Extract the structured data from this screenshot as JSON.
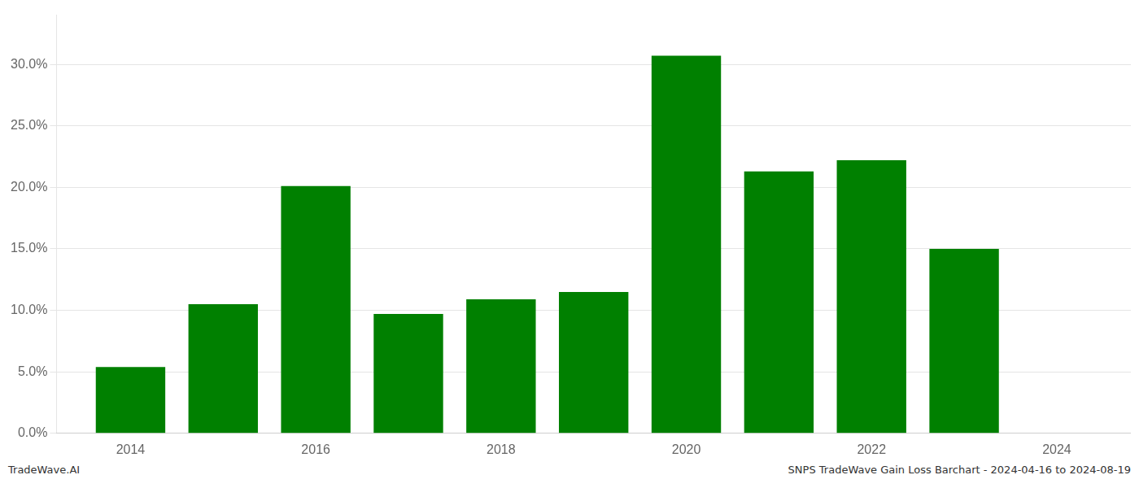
{
  "chart_data": {
    "type": "bar",
    "x": [
      2014,
      2015,
      2016,
      2017,
      2018,
      2019,
      2020,
      2021,
      2022,
      2023
    ],
    "values": [
      0.054,
      0.105,
      0.201,
      0.097,
      0.109,
      0.115,
      0.307,
      0.213,
      0.222,
      0.15
    ],
    "color": "#008000",
    "xlim": [
      2013.2,
      2024.8
    ],
    "xticks": [
      2014,
      2016,
      2018,
      2020,
      2022,
      2024
    ],
    "ylim": [
      0,
      0.34
    ],
    "yticks": [
      {
        "value": 0.0,
        "label": "0.0%"
      },
      {
        "value": 0.05,
        "label": "5.0%"
      },
      {
        "value": 0.1,
        "label": "10.0%"
      },
      {
        "value": 0.15,
        "label": "15.0%"
      },
      {
        "value": 0.2,
        "label": "20.0%"
      },
      {
        "value": 0.25,
        "label": "25.0%"
      },
      {
        "value": 0.3,
        "label": "30.0%"
      }
    ],
    "grid": "y",
    "annotations": [
      "TradeWave.AI",
      "SNPS TradeWave Gain Loss Barchart - 2024-04-16 to 2024-08-19"
    ]
  }
}
